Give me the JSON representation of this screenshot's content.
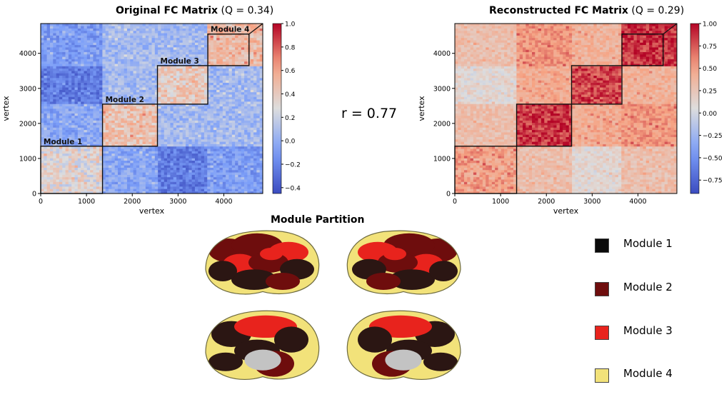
{
  "chart_data": [
    {
      "type": "heatmap",
      "title": "Original FC Matrix",
      "title_suffix": "(Q = 0.34)",
      "xlabel": "vertex",
      "ylabel": "vertex",
      "xlim": [
        0,
        4850
      ],
      "ylim": [
        0,
        4850
      ],
      "x_ticks": [
        0,
        1000,
        2000,
        3000,
        4000
      ],
      "y_ticks": [
        0,
        1000,
        2000,
        3000,
        4000
      ],
      "colorbar": {
        "min": -0.45,
        "max": 1.0,
        "ticks": [
          -0.4,
          -0.2,
          0.0,
          0.2,
          0.4,
          0.6,
          0.8,
          1.0
        ],
        "tick_labels": [
          "−0.4",
          "−0.2",
          "0.0",
          "0.2",
          "0.4",
          "0.6",
          "0.8",
          "1.0"
        ],
        "colormap": "coolwarm"
      },
      "modules": [
        {
          "label": "Module 1",
          "start": 0,
          "end": 1350
        },
        {
          "label": "Module 2",
          "start": 1350,
          "end": 2550
        },
        {
          "label": "Module 3",
          "start": 2550,
          "end": 3650
        },
        {
          "label": "Module 4",
          "start": 3650,
          "end": 4550
        }
      ],
      "block_values": [
        [
          0.3,
          -0.05,
          -0.25,
          -0.1
        ],
        [
          -0.05,
          0.45,
          0.05,
          0.05
        ],
        [
          -0.25,
          0.05,
          0.4,
          0.05
        ],
        [
          -0.1,
          0.05,
          0.05,
          0.5
        ]
      ]
    },
    {
      "type": "heatmap",
      "title": "Reconstructed FC Matrix",
      "title_suffix": "(Q = 0.29)",
      "xlabel": "vertex",
      "ylabel": "vertex",
      "xlim": [
        0,
        4850
      ],
      "ylim": [
        0,
        4850
      ],
      "x_ticks": [
        0,
        1000,
        2000,
        3000,
        4000
      ],
      "y_ticks": [
        0,
        1000,
        2000,
        3000,
        4000
      ],
      "colorbar": {
        "min": -0.9,
        "max": 1.0,
        "ticks": [
          -0.75,
          -0.5,
          -0.25,
          0.0,
          0.25,
          0.5,
          0.75,
          1.0
        ],
        "tick_labels": [
          "−0.75",
          "−0.50",
          "−0.25",
          "0.00",
          "0.25",
          "0.50",
          "0.75",
          "1.00"
        ],
        "colormap": "coolwarm"
      },
      "modules": [
        {
          "label": "Module 1",
          "start": 0,
          "end": 1350
        },
        {
          "label": "Module 2",
          "start": 1350,
          "end": 2550
        },
        {
          "label": "Module 3",
          "start": 2550,
          "end": 3650
        },
        {
          "label": "Module 4",
          "start": 3650,
          "end": 4550
        }
      ],
      "block_values": [
        [
          0.5,
          0.3,
          0.1,
          0.3
        ],
        [
          0.3,
          0.85,
          0.45,
          0.55
        ],
        [
          0.1,
          0.45,
          0.8,
          0.4
        ],
        [
          0.3,
          0.55,
          0.4,
          0.85
        ]
      ]
    }
  ],
  "correlation_label": "r = 0.77",
  "partition": {
    "title": "Module Partition",
    "legend": [
      {
        "label": "Module 1",
        "color": "#0a0a0a"
      },
      {
        "label": "Module 2",
        "color": "#6e0d0d"
      },
      {
        "label": "Module 3",
        "color": "#e8231d"
      },
      {
        "label": "Module 4",
        "color": "#f2e27a"
      }
    ],
    "brain_colors": {
      "base": "#f2e27a",
      "dark": "#2b1613",
      "deep": "#6e0d0d",
      "red": "#e8231d",
      "gray": "#c3c3c3"
    }
  }
}
